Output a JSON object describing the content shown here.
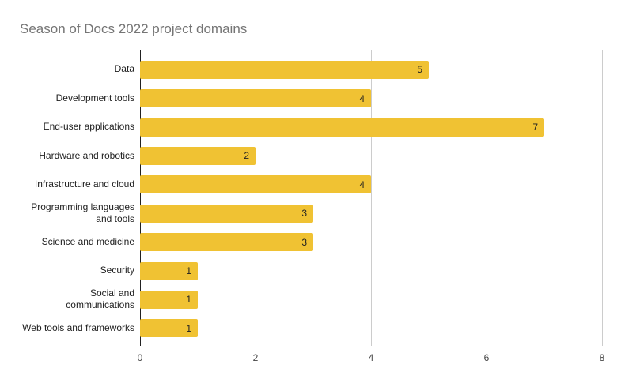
{
  "chart_data": {
    "type": "bar",
    "orientation": "horizontal",
    "title": "Season of Docs 2022 project domains",
    "categories": [
      "Data",
      "Development tools",
      "End-user applications",
      "Hardware and robotics",
      "Infrastructure and cloud",
      "Programming languages\nand tools",
      "Science and medicine",
      "Security",
      "Social and\ncommunications",
      "Web tools and frameworks"
    ],
    "values": [
      5,
      4,
      7,
      2,
      4,
      3,
      3,
      1,
      1,
      1
    ],
    "data_labels_shown": true,
    "xlabel": "",
    "ylabel": "",
    "xlim": [
      0,
      8
    ],
    "x_ticks": [
      0,
      2,
      4,
      6,
      8
    ],
    "grid": true,
    "legend": false,
    "colors": {
      "bar": "#F0C233",
      "bar_value_text": "#212121",
      "category_label": "#212121",
      "tick_label": "#424242",
      "title": "#757575",
      "axis_line": "#212121",
      "gridline": "#CCCCCC",
      "background": "#FFFFFF"
    }
  }
}
